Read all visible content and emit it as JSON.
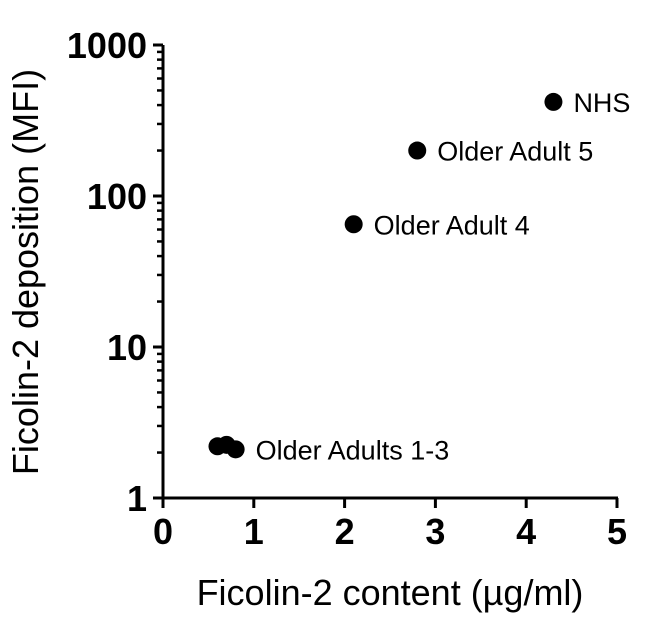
{
  "chart_data": {
    "type": "scatter",
    "title": "",
    "xlabel": "Ficolin-2 content (µg/ml)",
    "ylabel": "Ficolin-2 deposition (MFI)",
    "xlim": [
      0,
      5
    ],
    "ylim": [
      1,
      1000
    ],
    "yscale": "log",
    "grid": false,
    "legend": "none",
    "x_ticks": [
      "0",
      "1",
      "2",
      "3",
      "4",
      "5"
    ],
    "y_ticks": [
      "1",
      "10",
      "100",
      "1000"
    ],
    "points": [
      {
        "x": 0.6,
        "y": 2.2,
        "label": ""
      },
      {
        "x": 0.7,
        "y": 2.25,
        "label": ""
      },
      {
        "x": 0.8,
        "y": 2.1,
        "label": "Older Adults 1-3"
      },
      {
        "x": 2.1,
        "y": 65,
        "label": "Older Adult 4"
      },
      {
        "x": 2.8,
        "y": 200,
        "label": "Older Adult 5"
      },
      {
        "x": 4.3,
        "y": 420,
        "label": "NHS"
      }
    ],
    "annotations": [
      "NHS",
      "Older Adult 5",
      "Older Adult 4",
      "Older Adults 1-3"
    ]
  }
}
